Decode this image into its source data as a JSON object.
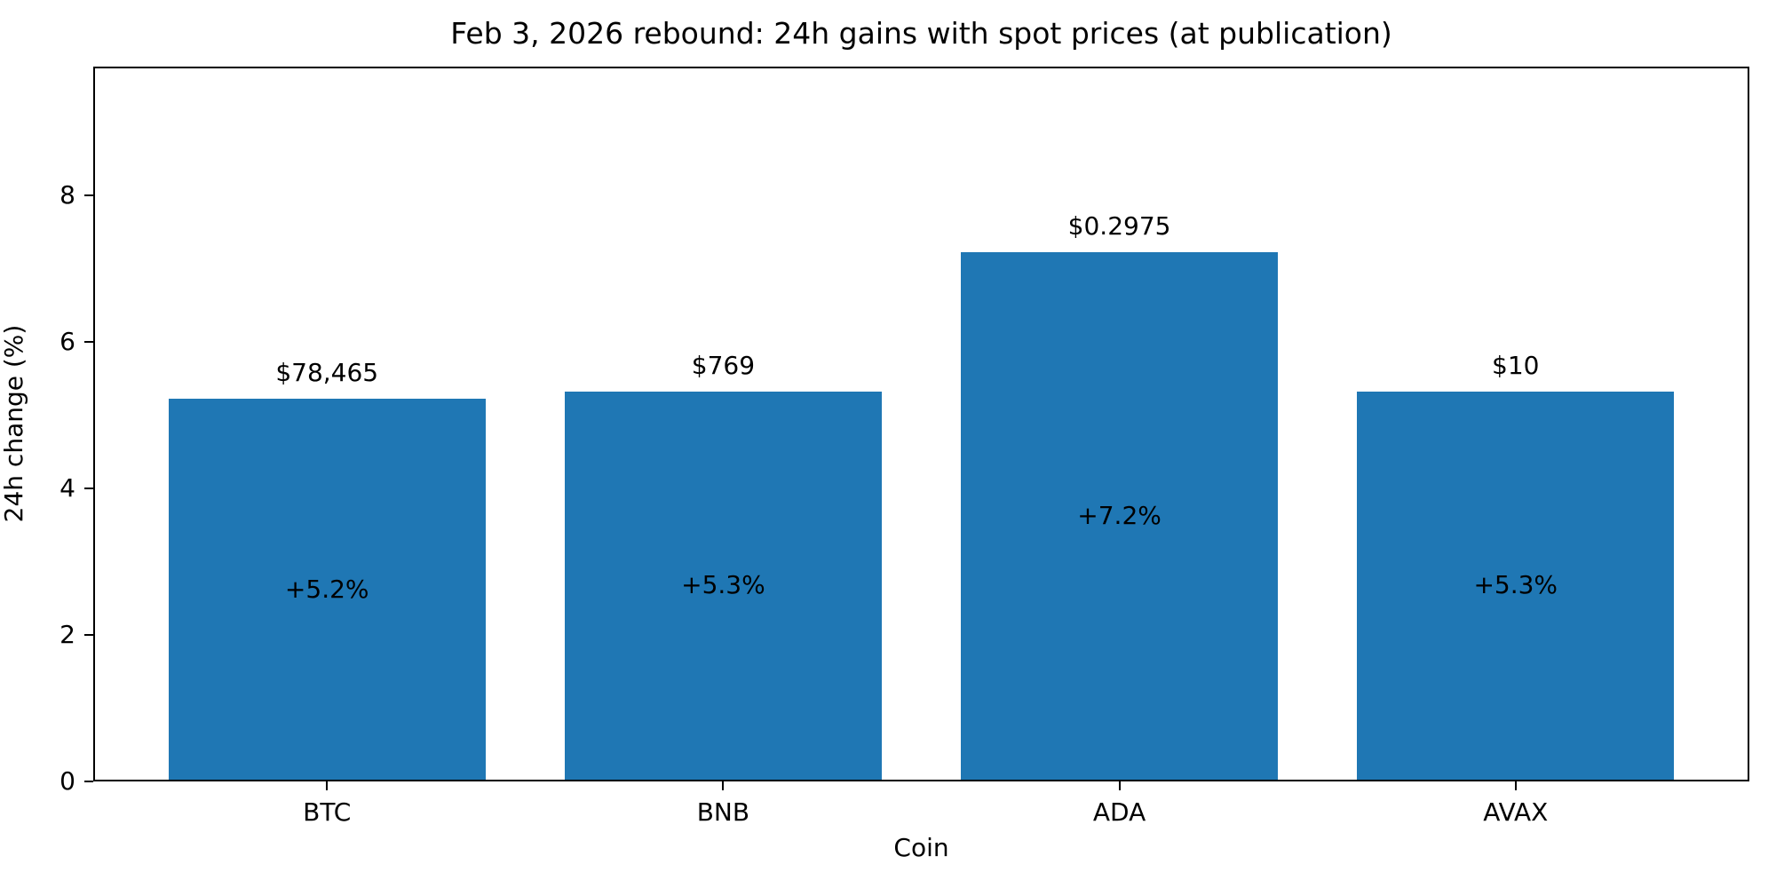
{
  "chart_data": {
    "type": "bar",
    "title": "Feb 3, 2026 rebound: 24h gains with spot prices (at publication)",
    "xlabel": "Coin",
    "ylabel": "24h change (%)",
    "categories": [
      "BTC",
      "BNB",
      "ADA",
      "AVAX"
    ],
    "values": [
      5.2,
      5.3,
      7.2,
      5.3
    ],
    "bar_inside_labels": [
      "+5.2%",
      "+5.3%",
      "+7.2%",
      "+5.3%"
    ],
    "bar_above_labels": [
      "$78,465",
      "$769",
      "$0.2975",
      "$10"
    ],
    "yticks": [
      0,
      2,
      4,
      6,
      8
    ],
    "ylim": [
      0,
      9.76
    ],
    "xlim": [
      -0.59,
      3.59
    ],
    "bar_width_units": 0.8,
    "bar_color": "#1f77b4",
    "grid": false,
    "legend_position": "none",
    "frame": "full-box"
  }
}
